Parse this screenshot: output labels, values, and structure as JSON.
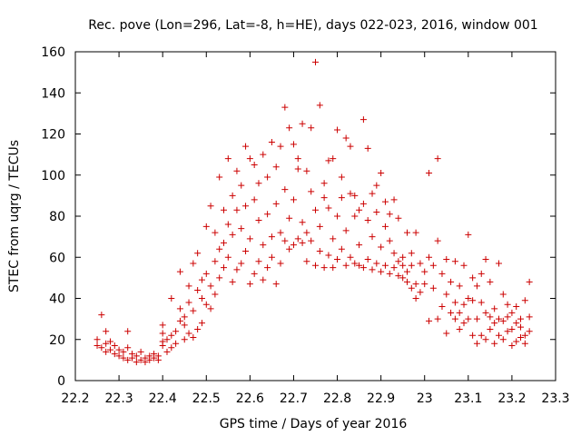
{
  "chart_data": {
    "type": "scatter",
    "title": "Rec. pove (Lon=296, Lat=-8, h=HE), days 022-023, 2016, window 001",
    "xlabel": "GPS time / Days of year 2016",
    "ylabel": "STEC from uqrg / TECUs",
    "xlim": [
      22.2,
      23.3
    ],
    "ylim": [
      0,
      160
    ],
    "x_ticks": [
      22.2,
      22.3,
      22.4,
      22.5,
      22.6,
      22.7,
      22.8,
      22.9,
      23,
      23.1,
      23.2,
      23.3
    ],
    "x_tick_labels": [
      "22.2",
      "22.3",
      "22.4",
      "22.5",
      "22.6",
      "22.7",
      "22.8",
      "22.9",
      "23",
      "23.1",
      "23.2",
      "23.3"
    ],
    "y_ticks": [
      0,
      20,
      40,
      60,
      80,
      100,
      120,
      140,
      160
    ],
    "y_tick_labels": [
      "0",
      "20",
      "40",
      "60",
      "80",
      "100",
      "120",
      "140",
      "160"
    ],
    "marker": "+",
    "color": "#cc0000",
    "grid": false,
    "series": [
      {
        "points": [
          [
            22.25,
            20
          ],
          [
            22.25,
            17
          ],
          [
            22.26,
            16
          ],
          [
            22.26,
            32
          ],
          [
            22.27,
            18
          ],
          [
            22.27,
            14
          ],
          [
            22.27,
            24
          ],
          [
            22.28,
            15
          ],
          [
            22.28,
            19
          ],
          [
            22.29,
            13
          ],
          [
            22.29,
            17
          ],
          [
            22.3,
            12
          ],
          [
            22.3,
            15
          ],
          [
            22.31,
            11
          ],
          [
            22.31,
            14
          ],
          [
            22.32,
            10
          ],
          [
            22.32,
            24
          ],
          [
            22.32,
            16
          ],
          [
            22.33,
            11
          ],
          [
            22.33,
            13
          ],
          [
            22.34,
            9
          ],
          [
            22.34,
            12
          ],
          [
            22.35,
            10
          ],
          [
            22.35,
            14
          ],
          [
            22.36,
            11
          ],
          [
            22.36,
            9
          ],
          [
            22.37,
            12
          ],
          [
            22.37,
            10
          ],
          [
            22.38,
            13
          ],
          [
            22.38,
            11
          ],
          [
            22.39,
            12
          ],
          [
            22.39,
            10
          ],
          [
            22.4,
            17
          ],
          [
            22.4,
            23
          ],
          [
            22.4,
            27
          ],
          [
            22.4,
            19
          ],
          [
            22.41,
            14
          ],
          [
            22.41,
            20
          ],
          [
            22.42,
            22
          ],
          [
            22.42,
            40
          ],
          [
            22.42,
            16
          ],
          [
            22.43,
            18
          ],
          [
            22.43,
            24
          ],
          [
            22.44,
            29
          ],
          [
            22.44,
            35
          ],
          [
            22.44,
            53
          ],
          [
            22.45,
            20
          ],
          [
            22.45,
            27
          ],
          [
            22.45,
            31
          ],
          [
            22.46,
            23
          ],
          [
            22.46,
            38
          ],
          [
            22.46,
            46
          ],
          [
            22.47,
            21
          ],
          [
            22.47,
            34
          ],
          [
            22.47,
            57
          ],
          [
            22.48,
            25
          ],
          [
            22.48,
            44
          ],
          [
            22.48,
            62
          ],
          [
            22.49,
            40
          ],
          [
            22.49,
            49
          ],
          [
            22.49,
            28
          ],
          [
            22.5,
            37
          ],
          [
            22.5,
            52
          ],
          [
            22.5,
            75
          ],
          [
            22.51,
            35
          ],
          [
            22.51,
            46
          ],
          [
            22.51,
            85
          ],
          [
            22.52,
            42
          ],
          [
            22.52,
            58
          ],
          [
            22.52,
            72
          ],
          [
            22.53,
            50
          ],
          [
            22.53,
            64
          ],
          [
            22.53,
            99
          ],
          [
            22.54,
            55
          ],
          [
            22.54,
            67
          ],
          [
            22.54,
            83
          ],
          [
            22.55,
            60
          ],
          [
            22.55,
            76
          ],
          [
            22.55,
            108
          ],
          [
            22.56,
            48
          ],
          [
            22.56,
            71
          ],
          [
            22.56,
            90
          ],
          [
            22.57,
            54
          ],
          [
            22.57,
            83
          ],
          [
            22.57,
            102
          ],
          [
            22.58,
            57
          ],
          [
            22.58,
            74
          ],
          [
            22.58,
            95
          ],
          [
            22.59,
            63
          ],
          [
            22.59,
            85
          ],
          [
            22.59,
            114
          ],
          [
            22.6,
            47
          ],
          [
            22.6,
            69
          ],
          [
            22.6,
            108
          ],
          [
            22.61,
            52
          ],
          [
            22.61,
            88
          ],
          [
            22.61,
            105
          ],
          [
            22.62,
            58
          ],
          [
            22.62,
            78
          ],
          [
            22.62,
            96
          ],
          [
            22.63,
            49
          ],
          [
            22.63,
            66
          ],
          [
            22.63,
            110
          ],
          [
            22.64,
            55
          ],
          [
            22.64,
            81
          ],
          [
            22.64,
            99
          ],
          [
            22.65,
            60
          ],
          [
            22.65,
            70
          ],
          [
            22.65,
            116
          ],
          [
            22.66,
            47
          ],
          [
            22.66,
            86
          ],
          [
            22.66,
            104
          ],
          [
            22.67,
            57
          ],
          [
            22.67,
            72
          ],
          [
            22.67,
            114
          ],
          [
            22.68,
            68
          ],
          [
            22.68,
            93
          ],
          [
            22.68,
            133
          ],
          [
            22.69,
            64
          ],
          [
            22.69,
            79
          ],
          [
            22.69,
            123
          ],
          [
            22.7,
            66
          ],
          [
            22.7,
            88
          ],
          [
            22.7,
            115
          ],
          [
            22.71,
            69
          ],
          [
            22.71,
            103
          ],
          [
            22.71,
            108
          ],
          [
            22.72,
            67
          ],
          [
            22.72,
            77
          ],
          [
            22.72,
            125
          ],
          [
            22.73,
            58
          ],
          [
            22.73,
            72
          ],
          [
            22.73,
            102
          ],
          [
            22.74,
            68
          ],
          [
            22.74,
            92
          ],
          [
            22.74,
            123
          ],
          [
            22.75,
            56
          ],
          [
            22.75,
            83
          ],
          [
            22.75,
            155
          ],
          [
            22.76,
            63
          ],
          [
            22.76,
            75
          ],
          [
            22.76,
            134
          ],
          [
            22.77,
            55
          ],
          [
            22.77,
            89
          ],
          [
            22.77,
            96
          ],
          [
            22.78,
            61
          ],
          [
            22.78,
            107
          ],
          [
            22.78,
            84
          ],
          [
            22.79,
            55
          ],
          [
            22.79,
            69
          ],
          [
            22.79,
            108
          ],
          [
            22.8,
            59
          ],
          [
            22.8,
            80
          ],
          [
            22.8,
            122
          ],
          [
            22.81,
            64
          ],
          [
            22.81,
            89
          ],
          [
            22.81,
            99
          ],
          [
            22.82,
            56
          ],
          [
            22.82,
            73
          ],
          [
            22.82,
            118
          ],
          [
            22.83,
            60
          ],
          [
            22.83,
            91
          ],
          [
            22.83,
            114
          ],
          [
            22.84,
            57
          ],
          [
            22.84,
            80
          ],
          [
            22.84,
            90
          ],
          [
            22.85,
            56
          ],
          [
            22.85,
            66
          ],
          [
            22.85,
            83
          ],
          [
            22.86,
            55
          ],
          [
            22.86,
            86
          ],
          [
            22.86,
            127
          ],
          [
            22.87,
            59
          ],
          [
            22.87,
            78
          ],
          [
            22.87,
            113
          ],
          [
            22.88,
            54
          ],
          [
            22.88,
            70
          ],
          [
            22.88,
            91
          ],
          [
            22.89,
            57
          ],
          [
            22.89,
            82
          ],
          [
            22.89,
            95
          ],
          [
            22.9,
            53
          ],
          [
            22.9,
            65
          ],
          [
            22.9,
            101
          ],
          [
            22.91,
            56
          ],
          [
            22.91,
            75
          ],
          [
            22.91,
            87
          ],
          [
            22.92,
            52
          ],
          [
            22.92,
            68
          ],
          [
            22.92,
            81
          ],
          [
            22.93,
            55
          ],
          [
            22.93,
            62
          ],
          [
            22.93,
            88
          ],
          [
            22.94,
            51
          ],
          [
            22.94,
            58
          ],
          [
            22.94,
            79
          ],
          [
            22.95,
            50
          ],
          [
            22.95,
            56
          ],
          [
            22.95,
            60
          ],
          [
            22.96,
            48
          ],
          [
            22.96,
            53
          ],
          [
            22.96,
            72
          ],
          [
            22.97,
            45
          ],
          [
            22.97,
            56
          ],
          [
            22.97,
            62
          ],
          [
            22.98,
            40
          ],
          [
            22.98,
            47
          ],
          [
            22.98,
            72
          ],
          [
            22.99,
            43
          ],
          [
            22.99,
            57
          ],
          [
            23.0,
            47
          ],
          [
            23.0,
            53
          ],
          [
            23.01,
            29
          ],
          [
            23.01,
            60
          ],
          [
            23.01,
            101
          ],
          [
            23.02,
            45
          ],
          [
            23.02,
            56
          ],
          [
            23.03,
            30
          ],
          [
            23.03,
            68
          ],
          [
            23.03,
            108
          ],
          [
            23.04,
            36
          ],
          [
            23.04,
            52
          ],
          [
            23.05,
            23
          ],
          [
            23.05,
            42
          ],
          [
            23.05,
            59
          ],
          [
            23.06,
            33
          ],
          [
            23.06,
            48
          ],
          [
            23.07,
            30
          ],
          [
            23.07,
            38
          ],
          [
            23.07,
            58
          ],
          [
            23.08,
            25
          ],
          [
            23.08,
            33
          ],
          [
            23.08,
            46
          ],
          [
            23.09,
            28
          ],
          [
            23.09,
            37
          ],
          [
            23.09,
            56
          ],
          [
            23.1,
            30
          ],
          [
            23.1,
            40
          ],
          [
            23.1,
            71
          ],
          [
            23.11,
            22
          ],
          [
            23.11,
            39
          ],
          [
            23.11,
            50
          ],
          [
            23.12,
            18
          ],
          [
            23.12,
            30
          ],
          [
            23.12,
            46
          ],
          [
            23.13,
            22
          ],
          [
            23.13,
            38
          ],
          [
            23.13,
            52
          ],
          [
            23.14,
            20
          ],
          [
            23.14,
            33
          ],
          [
            23.14,
            59
          ],
          [
            23.15,
            25
          ],
          [
            23.15,
            31
          ],
          [
            23.15,
            48
          ],
          [
            23.16,
            18
          ],
          [
            23.16,
            28
          ],
          [
            23.16,
            35
          ],
          [
            23.17,
            22
          ],
          [
            23.17,
            30
          ],
          [
            23.17,
            57
          ],
          [
            23.18,
            20
          ],
          [
            23.18,
            29
          ],
          [
            23.18,
            42
          ],
          [
            23.19,
            24
          ],
          [
            23.19,
            31
          ],
          [
            23.19,
            37
          ],
          [
            23.2,
            17
          ],
          [
            23.2,
            25
          ],
          [
            23.2,
            33
          ],
          [
            23.21,
            19
          ],
          [
            23.21,
            28
          ],
          [
            23.21,
            36
          ],
          [
            23.22,
            21
          ],
          [
            23.22,
            26
          ],
          [
            23.22,
            30
          ],
          [
            23.23,
            18
          ],
          [
            23.23,
            22
          ],
          [
            23.23,
            39
          ],
          [
            23.24,
            24
          ],
          [
            23.24,
            31
          ],
          [
            23.24,
            48
          ]
        ]
      }
    ]
  }
}
